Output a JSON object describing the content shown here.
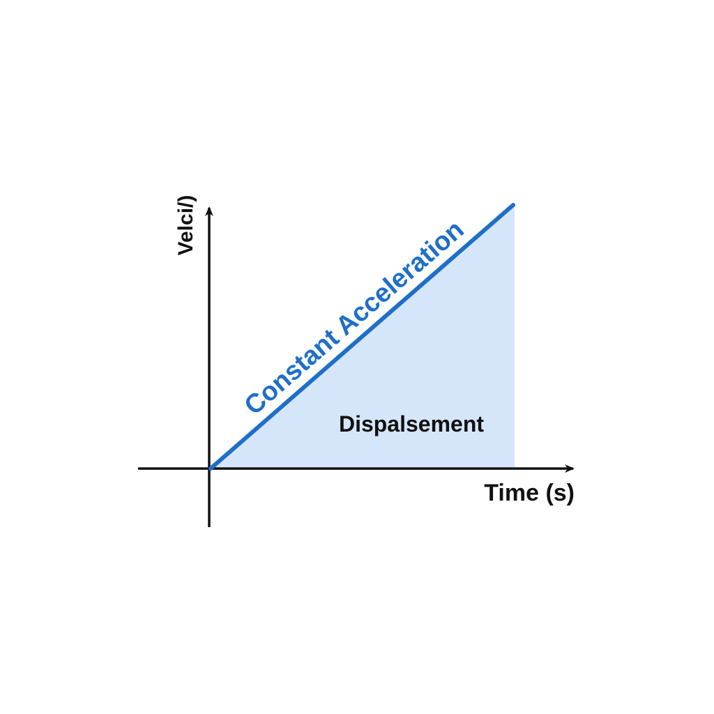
{
  "diagram": {
    "y_axis_label": "Velci/)",
    "x_axis_label": "Time (s)",
    "line_label": "Constant Acceleration",
    "area_label": "Dispalsement"
  },
  "colors": {
    "axis": "#111111",
    "line": "#1f6fc9",
    "area_fill": "#d6e6fa",
    "line_label": "#1f6fc9",
    "text": "#111111"
  }
}
